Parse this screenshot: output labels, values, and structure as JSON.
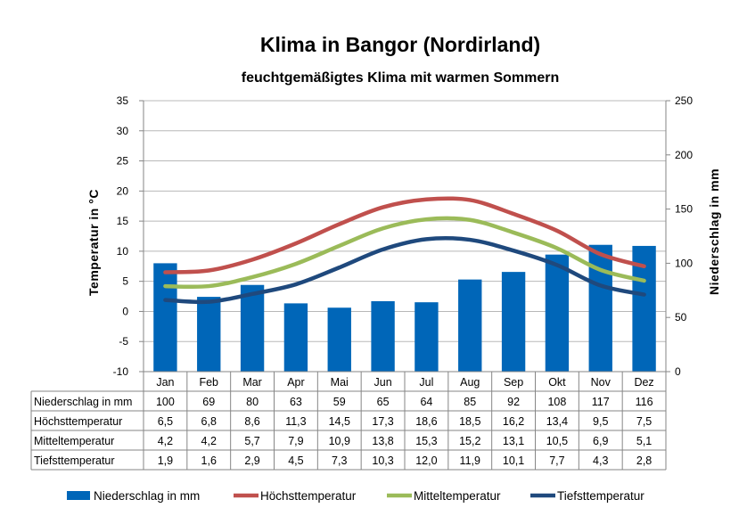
{
  "chart_data": {
    "type": "bar",
    "title": "Klima in Bangor (Nordirland)",
    "subtitle": "feuchtgemäßigtes Klima mit warmen Sommern",
    "ylabel_left": "Temperatur  in  °C",
    "ylabel_right": "Niederschlag  in  mm",
    "y_left_range": [
      -10,
      35
    ],
    "y_left_ticks": [
      "35",
      "30",
      "25",
      "20",
      "15",
      "10",
      "5",
      "0",
      "-5",
      "-10"
    ],
    "y_right_range": [
      0,
      250
    ],
    "y_right_ticks": [
      "250",
      "200",
      "150",
      "100",
      "50",
      "0"
    ],
    "grid": true,
    "legend_position": "bottom",
    "categories": [
      "Jan",
      "Feb",
      "Mar",
      "Apr",
      "Mai",
      "Jun",
      "Jul",
      "Aug",
      "Sep",
      "Okt",
      "Nov",
      "Dez"
    ],
    "series": [
      {
        "name": "Niederschlag in mm",
        "type": "bar",
        "axis": "right",
        "color": "#0066b8",
        "values": [
          100,
          69,
          80,
          63,
          59,
          65,
          64,
          85,
          92,
          108,
          117,
          116
        ],
        "labels": [
          "100",
          "69",
          "80",
          "63",
          "59",
          "65",
          "64",
          "85",
          "92",
          "108",
          "117",
          "116"
        ]
      },
      {
        "name": "Höchsttemperatur",
        "type": "line",
        "axis": "left",
        "color": "#c0504d",
        "values": [
          6.5,
          6.8,
          8.6,
          11.3,
          14.5,
          17.3,
          18.6,
          18.5,
          16.2,
          13.4,
          9.5,
          7.5
        ],
        "labels": [
          "6,5",
          "6,8",
          "8,6",
          "11,3",
          "14,5",
          "17,3",
          "18,6",
          "18,5",
          "16,2",
          "13,4",
          "9,5",
          "7,5"
        ]
      },
      {
        "name": "Mitteltemperatur",
        "type": "line",
        "axis": "left",
        "color": "#9bbb59",
        "values": [
          4.2,
          4.2,
          5.7,
          7.9,
          10.9,
          13.8,
          15.3,
          15.2,
          13.1,
          10.5,
          6.9,
          5.1
        ],
        "labels": [
          "4,2",
          "4,2",
          "5,7",
          "7,9",
          "10,9",
          "13,8",
          "15,3",
          "15,2",
          "13,1",
          "10,5",
          "6,9",
          "5,1"
        ]
      },
      {
        "name": "Tiefsttemperatur",
        "type": "line",
        "axis": "left",
        "color": "#1f497d",
        "values": [
          1.9,
          1.6,
          2.9,
          4.5,
          7.3,
          10.3,
          12.0,
          11.9,
          10.1,
          7.7,
          4.3,
          2.8
        ],
        "labels": [
          "1,9",
          "1,6",
          "2,9",
          "4,5",
          "7,3",
          "10,3",
          "12,0",
          "11,9",
          "10,1",
          "7,7",
          "4,3",
          "2,8"
        ]
      }
    ]
  }
}
